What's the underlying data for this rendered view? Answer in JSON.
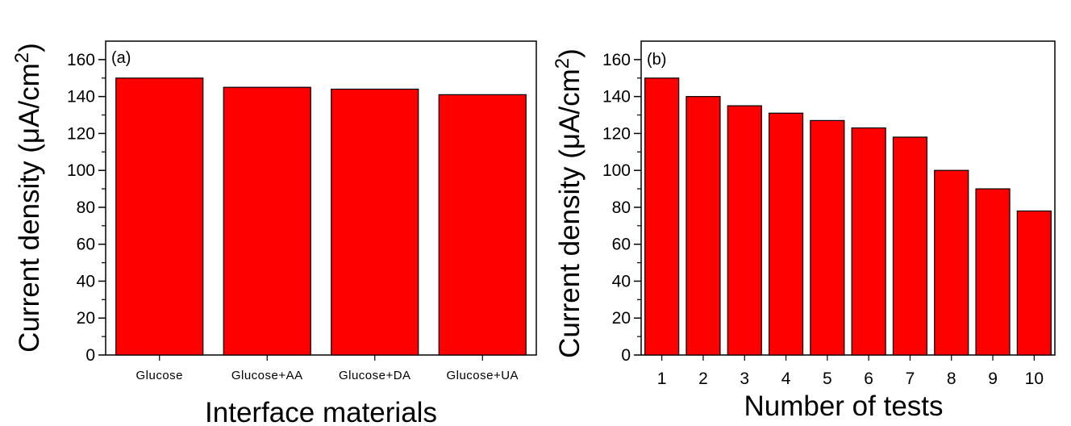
{
  "chart_data": [
    {
      "type": "bar",
      "panel_label": "(a)",
      "categories": [
        "Glucose",
        "Glucose+AA",
        "Glucose+DA",
        "Glucose+UA"
      ],
      "values": [
        150,
        145,
        144,
        141
      ],
      "xlabel": "Interface materials",
      "ylabel": "Current density (μA/cm²)",
      "ylabel_main": "Current density (",
      "ylabel_unit_base": "μA/cm",
      "ylabel_unit_sup": "2",
      "ylabel_close": ")",
      "ylim": [
        0,
        170
      ],
      "yticks": [
        "0",
        "20",
        "40",
        "60",
        "80",
        "100",
        "120",
        "140",
        "160"
      ],
      "grid": false,
      "bar_color": "#ff0000"
    },
    {
      "type": "bar",
      "panel_label": "(b)",
      "categories": [
        "1",
        "2",
        "3",
        "4",
        "5",
        "6",
        "7",
        "8",
        "9",
        "10"
      ],
      "values": [
        150,
        140,
        135,
        131,
        127,
        123,
        118,
        100,
        90,
        78
      ],
      "xlabel": "Number of tests",
      "ylabel": "Current density (μA/cm²)",
      "ylabel_main": "Current density (",
      "ylabel_unit_base": "μA/cm",
      "ylabel_unit_sup": "2",
      "ylabel_close": ")",
      "ylim": [
        0,
        170
      ],
      "yticks": [
        "0",
        "20",
        "40",
        "60",
        "80",
        "100",
        "120",
        "140",
        "160"
      ],
      "grid": false,
      "bar_color": "#ff0000"
    }
  ]
}
